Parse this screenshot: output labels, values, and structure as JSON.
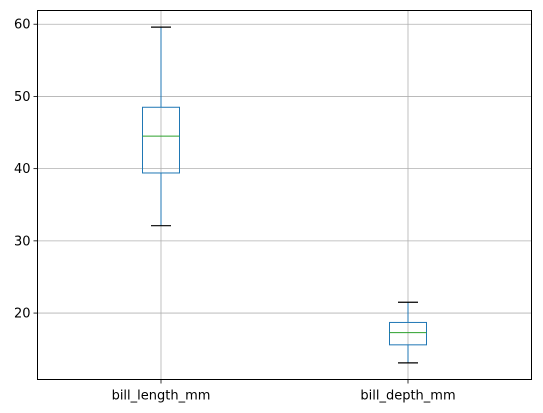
{
  "chart_data": {
    "type": "box",
    "categories": [
      "bill_length_mm",
      "bill_depth_mm"
    ],
    "boxes": [
      {
        "name": "bill_length_mm",
        "whisker_low": 32.1,
        "q1": 39.4,
        "median": 44.5,
        "q3": 48.5,
        "whisker_high": 59.6
      },
      {
        "name": "bill_depth_mm",
        "whisker_low": 13.1,
        "q1": 15.6,
        "median": 17.3,
        "q3": 18.7,
        "whisker_high": 21.5
      }
    ],
    "ylim": [
      10.8,
      61.9
    ],
    "yticks": [
      20,
      30,
      40,
      50,
      60
    ],
    "grid": true,
    "colors": {
      "box": "#1f77b4",
      "median": "#2ca02c",
      "cap": "#000000",
      "grid": "#b0b0b0"
    }
  }
}
